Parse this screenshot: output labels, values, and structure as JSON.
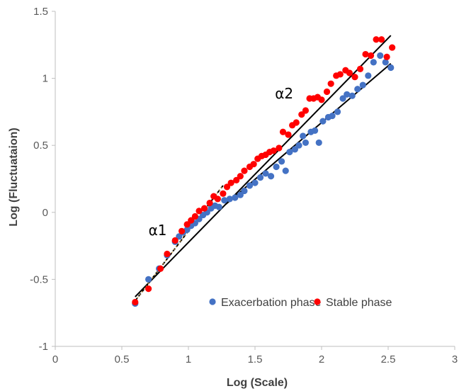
{
  "chart_data": {
    "type": "scatter",
    "xlabel": "Log (Scale)",
    "ylabel": "Log (Fluctuataion)",
    "xlim": [
      0,
      3
    ],
    "ylim": [
      -1,
      1.5
    ],
    "x_ticks": [
      0,
      0.5,
      1,
      1.5,
      2,
      2.5,
      3
    ],
    "y_ticks": [
      -1,
      -0.5,
      0,
      0.5,
      1,
      1.5
    ],
    "x_tick_labels": [
      "0",
      "0.5",
      "1",
      "1.5",
      "2",
      "2.5",
      "3"
    ],
    "y_tick_labels": [
      "-1",
      "-0.5",
      "0",
      "0.5",
      "1",
      "1.5"
    ],
    "grid": false,
    "legend_position": "bottom-right",
    "series": [
      {
        "name": "Exacerbation phase",
        "color": "#4472C4",
        "points": [
          [
            0.6,
            -0.68
          ],
          [
            0.7,
            -0.5
          ],
          [
            0.78,
            -0.42
          ],
          [
            0.84,
            -0.32
          ],
          [
            0.9,
            -0.22
          ],
          [
            0.93,
            -0.18
          ],
          [
            0.96,
            -0.15
          ],
          [
            0.99,
            -0.13
          ],
          [
            1.02,
            -0.1
          ],
          [
            1.05,
            -0.08
          ],
          [
            1.08,
            -0.05
          ],
          [
            1.11,
            -0.02
          ],
          [
            1.14,
            0.0
          ],
          [
            1.17,
            0.03
          ],
          [
            1.2,
            0.05
          ],
          [
            1.23,
            0.04
          ],
          [
            1.27,
            0.09
          ],
          [
            1.31,
            0.1
          ],
          [
            1.35,
            0.11
          ],
          [
            1.39,
            0.13
          ],
          [
            1.42,
            0.16
          ],
          [
            1.46,
            0.2
          ],
          [
            1.5,
            0.22
          ],
          [
            1.54,
            0.26
          ],
          [
            1.58,
            0.29
          ],
          [
            1.62,
            0.27
          ],
          [
            1.66,
            0.34
          ],
          [
            1.7,
            0.38
          ],
          [
            1.73,
            0.31
          ],
          [
            1.76,
            0.45
          ],
          [
            1.8,
            0.47
          ],
          [
            1.83,
            0.5
          ],
          [
            1.86,
            0.57
          ],
          [
            1.88,
            0.52
          ],
          [
            1.92,
            0.6
          ],
          [
            1.95,
            0.61
          ],
          [
            1.98,
            0.52
          ],
          [
            2.01,
            0.68
          ],
          [
            2.05,
            0.71
          ],
          [
            2.08,
            0.72
          ],
          [
            2.12,
            0.75
          ],
          [
            2.16,
            0.85
          ],
          [
            2.19,
            0.88
          ],
          [
            2.23,
            0.87
          ],
          [
            2.27,
            0.92
          ],
          [
            2.31,
            0.95
          ],
          [
            2.35,
            1.02
          ],
          [
            2.39,
            1.12
          ],
          [
            2.44,
            1.17
          ],
          [
            2.48,
            1.12
          ],
          [
            2.52,
            1.08
          ]
        ],
        "fit_line": {
          "from": [
            1.28,
            0.06
          ],
          "to": [
            2.52,
            1.11
          ]
        }
      },
      {
        "name": "Stable phase",
        "color": "#FF0000",
        "points": [
          [
            0.6,
            -0.67
          ],
          [
            0.7,
            -0.57
          ],
          [
            0.79,
            -0.42
          ],
          [
            0.84,
            -0.31
          ],
          [
            0.9,
            -0.21
          ],
          [
            0.95,
            -0.14
          ],
          [
            0.99,
            -0.09
          ],
          [
            1.02,
            -0.06
          ],
          [
            1.05,
            -0.03
          ],
          [
            1.08,
            0.01
          ],
          [
            1.12,
            0.03
          ],
          [
            1.16,
            0.07
          ],
          [
            1.19,
            0.12
          ],
          [
            1.22,
            0.1
          ],
          [
            1.26,
            0.14
          ],
          [
            1.29,
            0.19
          ],
          [
            1.32,
            0.22
          ],
          [
            1.36,
            0.24
          ],
          [
            1.39,
            0.27
          ],
          [
            1.42,
            0.31
          ],
          [
            1.46,
            0.34
          ],
          [
            1.49,
            0.36
          ],
          [
            1.52,
            0.4
          ],
          [
            1.55,
            0.42
          ],
          [
            1.58,
            0.43
          ],
          [
            1.61,
            0.45
          ],
          [
            1.64,
            0.46
          ],
          [
            1.68,
            0.48
          ],
          [
            1.71,
            0.6
          ],
          [
            1.75,
            0.58
          ],
          [
            1.78,
            0.65
          ],
          [
            1.81,
            0.67
          ],
          [
            1.85,
            0.73
          ],
          [
            1.88,
            0.76
          ],
          [
            1.91,
            0.85
          ],
          [
            1.94,
            0.85
          ],
          [
            1.97,
            0.86
          ],
          [
            2.0,
            0.84
          ],
          [
            2.04,
            0.9
          ],
          [
            2.07,
            0.96
          ],
          [
            2.11,
            1.02
          ],
          [
            2.14,
            1.03
          ],
          [
            2.18,
            1.06
          ],
          [
            2.21,
            1.04
          ],
          [
            2.25,
            1.01
          ],
          [
            2.29,
            1.07
          ],
          [
            2.33,
            1.18
          ],
          [
            2.37,
            1.17
          ],
          [
            2.41,
            1.29
          ],
          [
            2.45,
            1.29
          ],
          [
            2.49,
            1.16
          ],
          [
            2.53,
            1.23
          ]
        ],
        "fit_line": {
          "from": [
            0.6,
            -0.63
          ],
          "to": [
            2.52,
            1.32
          ]
        }
      }
    ],
    "alpha1_fit": {
      "from": [
        0.6,
        -0.66
      ],
      "to": [
        1.26,
        0.2
      ]
    },
    "annotations": [
      {
        "text": "α1",
        "x": 0.7,
        "y": -0.17
      },
      {
        "text": "α2",
        "x": 1.65,
        "y": 0.85
      }
    ]
  }
}
